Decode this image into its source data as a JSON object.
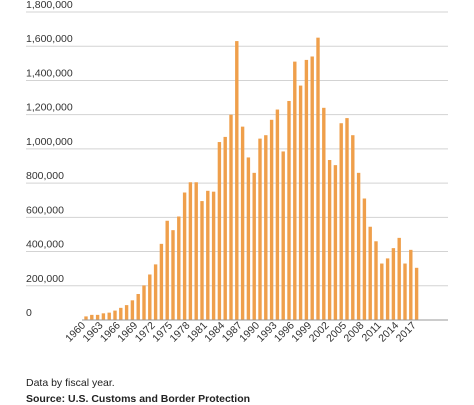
{
  "chart_data": {
    "type": "bar",
    "title": "",
    "xlabel": "",
    "ylabel": "",
    "ylim": [
      0,
      1800000
    ],
    "yticks": [
      {
        "value": 0,
        "label": "0"
      },
      {
        "value": 200000,
        "label": "200,000"
      },
      {
        "value": 400000,
        "label": "400,000"
      },
      {
        "value": 600000,
        "label": "600,000"
      },
      {
        "value": 800000,
        "label": "800,000"
      },
      {
        "value": 1000000,
        "label": "1,000,000"
      },
      {
        "value": 1200000,
        "label": "1,200,000"
      },
      {
        "value": 1400000,
        "label": "1,400,000"
      },
      {
        "value": 1600000,
        "label": "1,600,000"
      },
      {
        "value": 1800000,
        "label": "1,800,000"
      }
    ],
    "xtick_labels": [
      "1960",
      "1963",
      "1966",
      "1969",
      "1972",
      "1975",
      "1978",
      "1981",
      "1984",
      "1987",
      "1990",
      "1993",
      "1996",
      "1999",
      "2002",
      "2005",
      "2008",
      "2011",
      "2014",
      "2017"
    ],
    "grid": "horizontal",
    "bar_color": "#ef9f4b",
    "categories": [
      "1960",
      "1961",
      "1962",
      "1963",
      "1964",
      "1965",
      "1966",
      "1967",
      "1968",
      "1969",
      "1970",
      "1971",
      "1972",
      "1973",
      "1974",
      "1975",
      "1976",
      "1977",
      "1978",
      "1979",
      "1980",
      "1981",
      "1982",
      "1983",
      "1984",
      "1985",
      "1986",
      "1987",
      "1988",
      "1989",
      "1990",
      "1991",
      "1992",
      "1993",
      "1994",
      "1995",
      "1996",
      "1997",
      "1998",
      "1999",
      "2000",
      "2001",
      "2002",
      "2003",
      "2004",
      "2005",
      "2006",
      "2007",
      "2008",
      "2009",
      "2010",
      "2011",
      "2012",
      "2013",
      "2014",
      "2015",
      "2016",
      "2017",
      "2018"
    ],
    "values": [
      21000,
      30000,
      30000,
      39000,
      43000,
      55000,
      71000,
      87000,
      115000,
      152000,
      202000,
      266000,
      325000,
      445000,
      580000,
      525000,
      605000,
      745000,
      805000,
      805000,
      695000,
      755000,
      750000,
      1040000,
      1070000,
      1200000,
      1630000,
      1130000,
      950000,
      860000,
      1060000,
      1080000,
      1170000,
      1230000,
      985000,
      1280000,
      1510000,
      1370000,
      1520000,
      1540000,
      1650000,
      1240000,
      935000,
      905000,
      1150000,
      1180000,
      1080000,
      860000,
      710000,
      545000,
      460000,
      330000,
      360000,
      420000,
      480000,
      330000,
      410000,
      305000,
      null
    ]
  },
  "notes": {
    "line1": "Data by fiscal year.",
    "line2": "Source: U.S. Customs and Border Protection"
  }
}
